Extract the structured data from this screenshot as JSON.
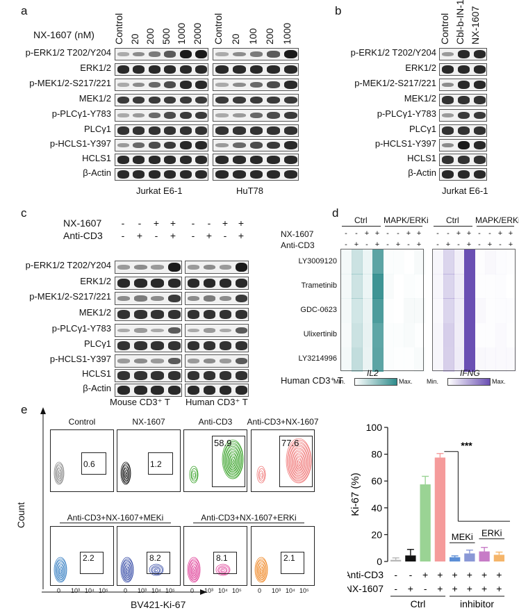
{
  "panel_a": {
    "label": "a",
    "treatment_label": "NX-1607 (nM)",
    "jurkat_lanes": [
      "Control",
      "20",
      "200",
      "500",
      "1000",
      "2000"
    ],
    "hut_lanes": [
      "Control",
      "20",
      "100",
      "200",
      "1000"
    ],
    "rows": [
      "p-ERK1/2 T202/Y204",
      "ERK1/2",
      "p-MEK1/2-S217/221",
      "MEK1/2",
      "p-PLCγ1-Y783",
      "PLCγ1",
      "p-HCLS1-Y397",
      "HCLS1",
      "β-Actin"
    ],
    "cell_lines": [
      "Jurkat E6-1",
      "HuT78"
    ]
  },
  "panel_b": {
    "label": "b",
    "lanes": [
      "Control",
      "Cbl-b-IN-1",
      "NX-1607"
    ],
    "rows": [
      "p-ERK1/2 T202/Y204",
      "ERK1/2",
      "p-MEK1/2-S217/221",
      "MEK1/2",
      "p-PLCγ1-Y783",
      "PLCγ1",
      "p-HCLS1-Y397",
      "HCLS1",
      "β-Actin"
    ],
    "cell_line": "Jurkat E6-1"
  },
  "panel_c": {
    "label": "c",
    "cond_labels": [
      "NX-1607",
      "Anti-CD3"
    ],
    "nx_signs": [
      "-",
      "-",
      "+",
      "+",
      "-",
      "-",
      "+",
      "+"
    ],
    "cd3_signs": [
      "-",
      "+",
      "-",
      "+",
      "-",
      "+",
      "-",
      "+"
    ],
    "rows": [
      "p-ERK1/2 T202/Y204",
      "ERK1/2",
      "p-MEK1/2-S217/221",
      "MEK1/2",
      "p-PLCγ1-Y783",
      "PLCγ1",
      "p-HCLS1-Y397",
      "HCLS1",
      "β-Actin"
    ],
    "cells": [
      "Mouse CD3⁺ T",
      "Human CD3⁺ T"
    ]
  },
  "panel_d": {
    "label": "d",
    "groups": [
      "Ctrl",
      "MAPK/ERKi",
      "Ctrl",
      "MAPK/ERKi"
    ],
    "cond_labels": [
      "NX-1607",
      "Anti-CD3"
    ],
    "nx_signs": [
      "-",
      "-",
      "+",
      "+",
      "-",
      "-",
      "+",
      "+"
    ],
    "cd3_signs": [
      "-",
      "+",
      "-",
      "+",
      "-",
      "+",
      "-",
      "+"
    ],
    "rows": [
      "LY3009120",
      "Trametinib",
      "GDC-0623",
      "Ulixertinib",
      "LY3214996"
    ],
    "cell": "Human CD3⁺ T",
    "genes": [
      "IL2",
      "IFNG"
    ],
    "scale_min": "Min.",
    "scale_max": "Max.",
    "il2_color": "#2e8b8b",
    "ifng_color": "#6a4fb3"
  },
  "panel_e": {
    "label": "e",
    "top_titles": [
      "Control",
      "NX-1607",
      "Anti-CD3",
      "Anti-CD3+NX-1607"
    ],
    "top_values": [
      "0.6",
      "1.2",
      "58.9",
      "77.6"
    ],
    "bottom_group_titles": [
      "Anti-CD3+NX-1607+MEKi",
      "Anti-CD3+NX-1607+ERKi"
    ],
    "bottom_values": [
      "2.2",
      "8.2",
      "8.1",
      "2.1"
    ],
    "y_axis": "Count",
    "x_axis": "BV421-Ki-67",
    "x_ticks": [
      "0",
      "10³",
      "10⁴",
      "10⁵"
    ],
    "contour_colors": [
      "#8c8c8c",
      "#111111",
      "#3aa32a",
      "#f07a7a",
      "#3b82c4",
      "#3a4fa8",
      "#e0459b",
      "#f08a2a"
    ]
  },
  "chart_data": {
    "type": "bar",
    "ylabel": "Ki-67 (%)",
    "ylim": [
      0,
      100
    ],
    "yticks": [
      0,
      20,
      40,
      60,
      80,
      100
    ],
    "categories": [
      "1",
      "2",
      "3",
      "4",
      "5",
      "6",
      "7",
      "8"
    ],
    "values": [
      1.2,
      4.5,
      57.5,
      77.5,
      3.2,
      6.0,
      7.5,
      5.0
    ],
    "errors": [
      1.5,
      4.5,
      6.0,
      3.0,
      1.0,
      2.5,
      3.0,
      2.0
    ],
    "colors": [
      "#b7b7b7",
      "#111111",
      "#9ad394",
      "#f59b9b",
      "#5c8fd6",
      "#8a98d6",
      "#c77cc7",
      "#f5b56a"
    ],
    "anti_cd3_signs": [
      "-",
      "-",
      "+",
      "+",
      "+",
      "+",
      "+",
      "+"
    ],
    "nx_signs": [
      "-",
      "+",
      "-",
      "+",
      "+",
      "+",
      "+",
      "+"
    ],
    "row_labels": [
      "Anti-CD3",
      "NX-1607"
    ],
    "group_labels": [
      "Ctrl",
      "inhibitor"
    ],
    "sub_labels": [
      "MEKi",
      "ERKi"
    ],
    "significance": "***"
  }
}
